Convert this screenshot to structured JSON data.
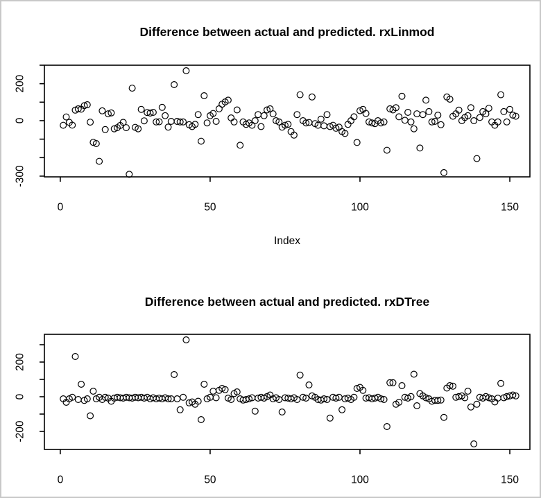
{
  "window": {
    "background": "#ffffff",
    "border_color": "#c8c8c8",
    "foreground": "#000000"
  },
  "chart_data": [
    {
      "type": "scatter",
      "title": "Difference between actual and predicted. rxLinmod",
      "xlabel": "Index",
      "ylabel": "",
      "marker": "open-circle",
      "marker_color": "#000000",
      "grid": false,
      "legend": null,
      "xlim": [
        -5.3,
        156.7
      ],
      "ylim": [
        -304,
        300
      ],
      "x_ticks": [
        0,
        50,
        100,
        150
      ],
      "x_tick_labels": [
        "0",
        "50",
        "100",
        "150"
      ],
      "y_ticks": [
        300,
        200,
        100,
        0,
        -100,
        -200,
        -300
      ],
      "y_tick_labels": [
        "",
        "200",
        "",
        "0",
        "",
        "",
        "-300"
      ],
      "x_start_index": 1,
      "values": [
        -25,
        20,
        -9,
        -24,
        57,
        64,
        62,
        81,
        86,
        -8,
        -117,
        -124,
        -220,
        53,
        -48,
        37,
        42,
        -44,
        -38,
        -26,
        -9,
        -38,
        -290,
        176,
        -36,
        -44,
        61,
        -1,
        44,
        41,
        45,
        -7,
        -6,
        72,
        27,
        -35,
        -4,
        195,
        -4,
        -7,
        -7,
        270,
        -22,
        -32,
        -20,
        33,
        -111,
        135,
        -12,
        27,
        39,
        -4,
        64,
        89,
        101,
        111,
        15,
        -7,
        58,
        -133,
        -7,
        -20,
        -12,
        -25,
        0,
        33,
        -32,
        27,
        58,
        64,
        37,
        0,
        -7,
        -35,
        -25,
        -20,
        -59,
        -78,
        33,
        140,
        0,
        -12,
        -10,
        128,
        -16,
        -25,
        8,
        -28,
        33,
        -32,
        -25,
        -41,
        -35,
        -59,
        -69,
        -20,
        0,
        21,
        -118,
        54,
        61,
        39,
        -7,
        -12,
        -16,
        0,
        -12,
        -7,
        -160,
        64,
        58,
        70,
        21,
        132,
        2,
        45,
        -7,
        -44,
        37,
        -148,
        33,
        111,
        49,
        -7,
        -4,
        30,
        -22,
        -281,
        128,
        116,
        24,
        37,
        57,
        0,
        17,
        27,
        70,
        0,
        -205,
        17,
        49,
        37,
        67,
        -7,
        -25,
        -7,
        140,
        49,
        -7,
        61,
        30,
        24
      ]
    },
    {
      "type": "scatter",
      "title": "Difference between actual and predicted. rxDTree",
      "xlabel": "",
      "ylabel": "",
      "marker": "open-circle",
      "marker_color": "#000000",
      "grid": false,
      "legend": null,
      "xlim": [
        -5.3,
        156.7
      ],
      "ylim": [
        -304,
        360
      ],
      "x_ticks": [
        0,
        50,
        100,
        150
      ],
      "x_tick_labels": [
        "0",
        "50",
        "100",
        "150"
      ],
      "y_ticks": [
        300,
        200,
        100,
        0,
        -100,
        -200
      ],
      "y_tick_labels": [
        "",
        "200",
        "",
        "0",
        "",
        "-200"
      ],
      "x_start_index": 1,
      "values": [
        -12,
        -32,
        -12,
        -3,
        232,
        -16,
        72,
        -21,
        -12,
        -110,
        32,
        -12,
        -3,
        -16,
        -3,
        -8,
        -26,
        -8,
        -3,
        -6,
        -8,
        -3,
        -6,
        -8,
        -3,
        -6,
        -3,
        -8,
        -3,
        -12,
        -6,
        -12,
        -8,
        -12,
        -6,
        -12,
        -12,
        128,
        -12,
        -75,
        -3,
        328,
        -35,
        -30,
        -43,
        -26,
        -132,
        72,
        -12,
        -3,
        32,
        -6,
        37,
        48,
        41,
        -8,
        -16,
        18,
        28,
        -12,
        -19,
        -16,
        -12,
        -6,
        -83,
        -8,
        -3,
        -8,
        1,
        10,
        -12,
        -6,
        -16,
        -88,
        -6,
        -8,
        -12,
        -6,
        -16,
        125,
        -3,
        -8,
        68,
        5,
        -3,
        -16,
        -19,
        -12,
        -16,
        -123,
        -3,
        -8,
        -3,
        -75,
        -12,
        -8,
        -16,
        -3,
        48,
        54,
        37,
        -8,
        -6,
        -12,
        -8,
        -3,
        -12,
        -16,
        -172,
        81,
        81,
        -43,
        -32,
        64,
        -3,
        -8,
        1,
        130,
        -52,
        18,
        5,
        -6,
        -12,
        -26,
        -21,
        -21,
        -19,
        -119,
        50,
        64,
        61,
        -3,
        1,
        5,
        -6,
        32,
        -59,
        -272,
        -43,
        -3,
        -8,
        1,
        -6,
        -12,
        -30,
        -8,
        77,
        -6,
        1,
        5,
        10,
        5
      ]
    }
  ]
}
